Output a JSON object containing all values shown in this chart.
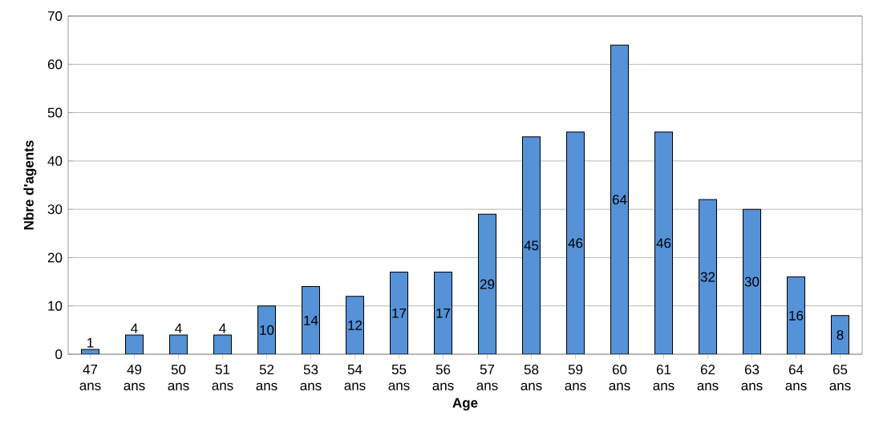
{
  "chart_data": {
    "type": "bar",
    "xlabel": "Age",
    "ylabel": "Nbre d'agents",
    "categories": [
      "47 ans",
      "49 ans",
      "50 ans",
      "51 ans",
      "52 ans",
      "53 ans",
      "54 ans",
      "55 ans",
      "56 ans",
      "57 ans",
      "58 ans",
      "59 ans",
      "60 ans",
      "61 ans",
      "62 ans",
      "63 ans",
      "64 ans",
      "65 ans"
    ],
    "values": [
      1,
      4,
      4,
      4,
      10,
      14,
      12,
      17,
      17,
      29,
      45,
      46,
      64,
      46,
      32,
      30,
      16,
      8
    ],
    "color": "#5592d8",
    "ylim": [
      0,
      70
    ],
    "yticks": [
      0,
      10,
      20,
      30,
      40,
      50,
      60,
      70
    ],
    "grid": "y",
    "data_labels": true
  }
}
